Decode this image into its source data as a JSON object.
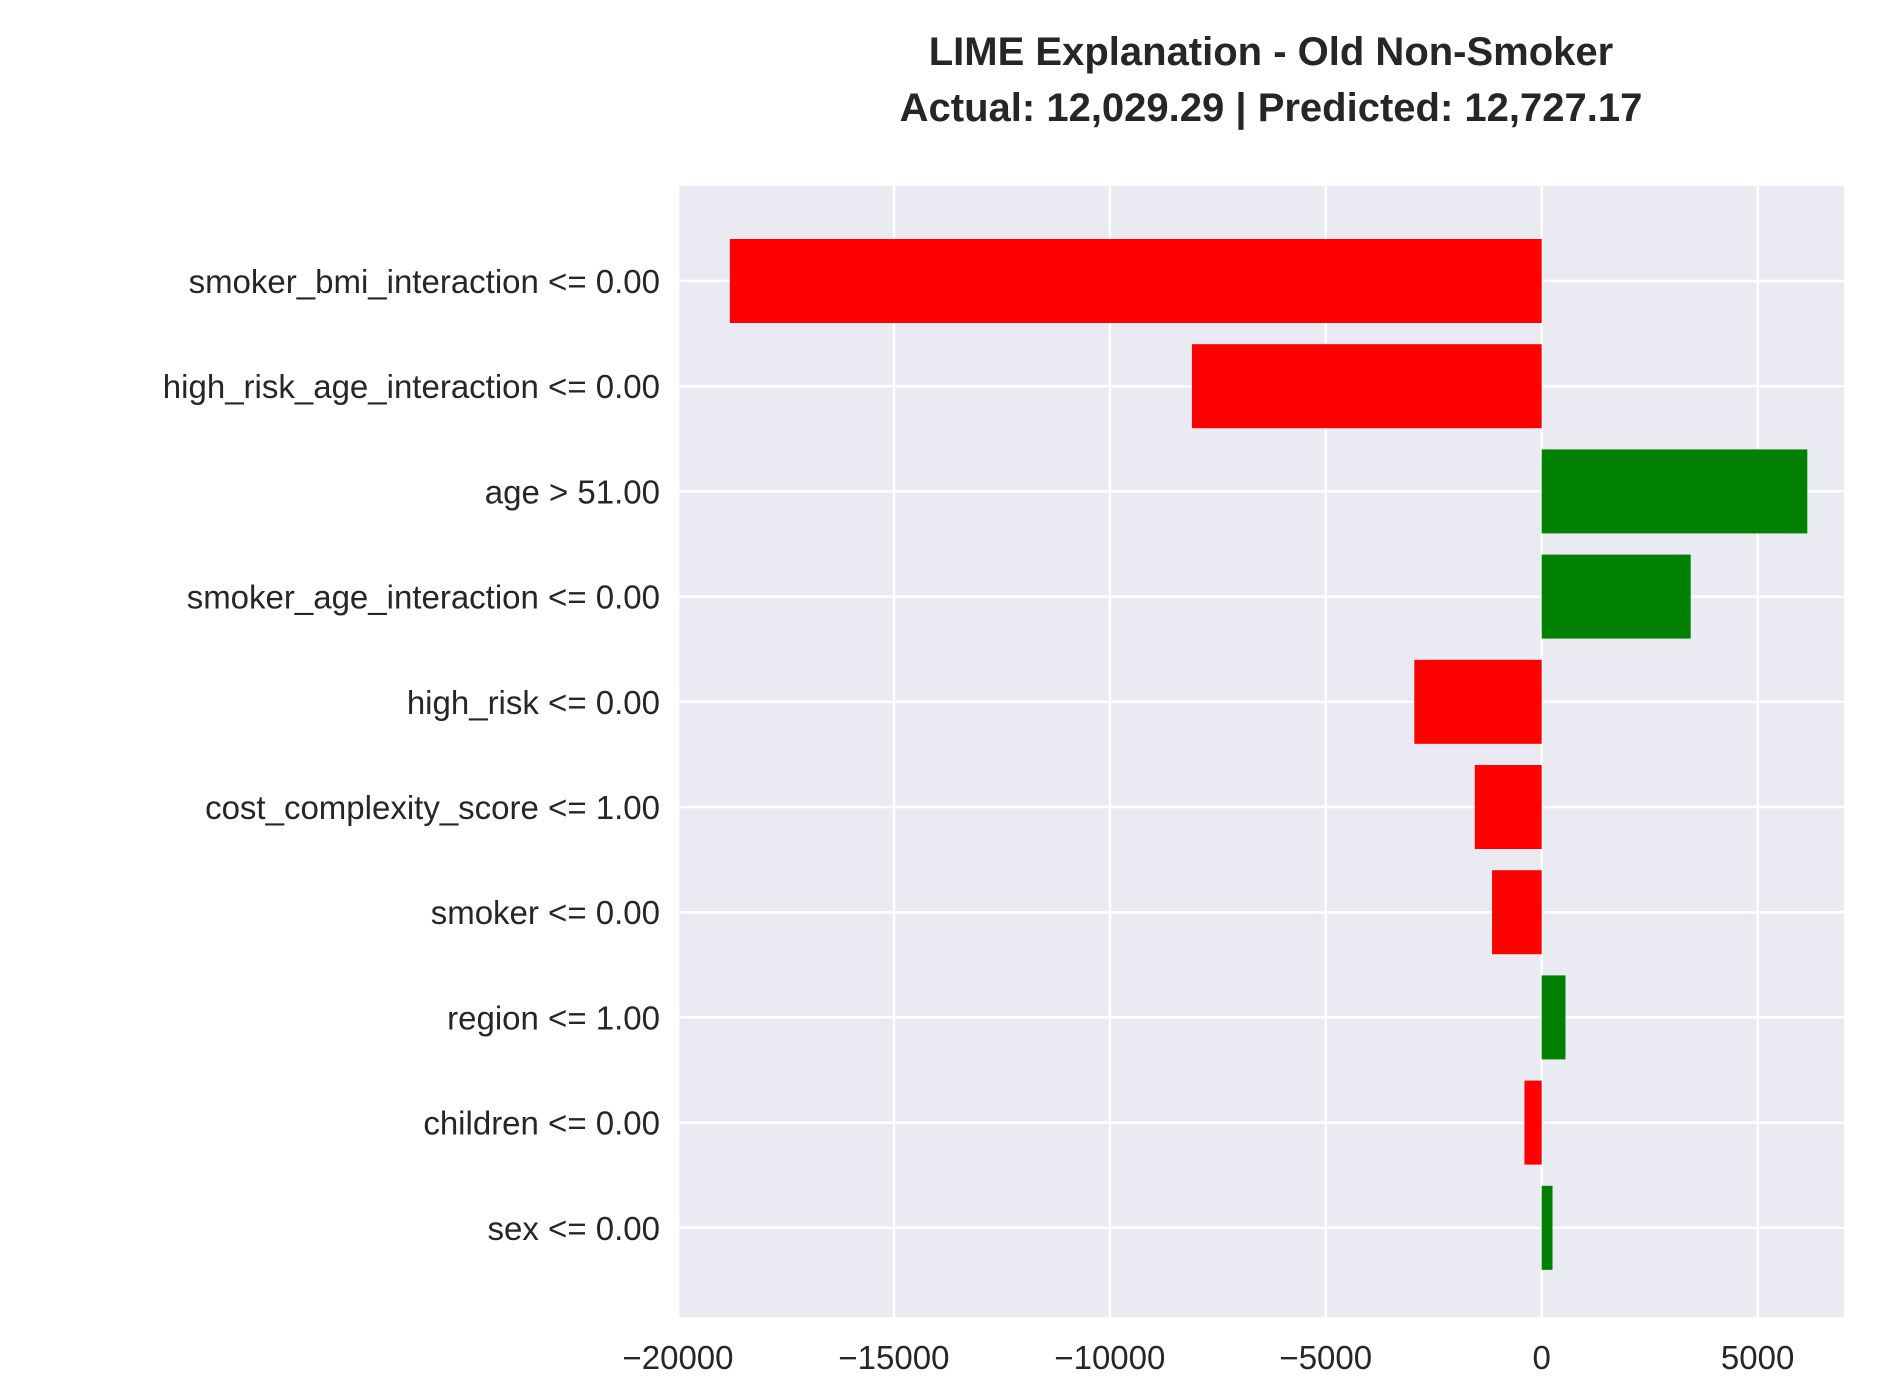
{
  "chart_data": {
    "type": "bar",
    "orientation": "horizontal",
    "title": "LIME Explanation - Old Non-Smoker",
    "subtitle": "Actual: 12,029.29 | Predicted: 12,727.17",
    "xlabel": "",
    "ylabel": "",
    "xlim": [
      -20000,
      7000
    ],
    "xticks": [
      -20000,
      -15000,
      -10000,
      -5000,
      0,
      5000
    ],
    "xtick_labels": [
      "−20000",
      "−15000",
      "−10000",
      "−5000",
      "0",
      "5000"
    ],
    "grid": true,
    "categories": [
      "smoker_bmi_interaction <= 0.00",
      "high_risk_age_interaction <= 0.00",
      "age > 51.00",
      "smoker_age_interaction <= 0.00",
      "high_risk <= 0.00",
      "cost_complexity_score <= 1.00",
      "smoker <= 0.00",
      "region <= 1.00",
      "children <= 0.00",
      "sex <= 0.00"
    ],
    "values": [
      -18800,
      -8100,
      6150,
      3450,
      -2950,
      -1550,
      -1150,
      550,
      -400,
      250
    ],
    "colors": {
      "positive": "#008000",
      "negative": "#ff0000",
      "plot_background": "#eaeaf2",
      "grid": "#ffffff",
      "text": "#262626"
    }
  }
}
